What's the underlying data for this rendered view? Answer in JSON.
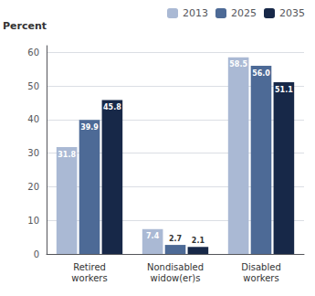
{
  "chart_data": {
    "type": "bar",
    "ylabel": "Percent",
    "categories": [
      "Retired\nworkers",
      "Nondisabled\nwidow(er)s",
      "Disabled\nworkers"
    ],
    "series": [
      {
        "name": "2013",
        "color": "#aab9d4",
        "values": [
          31.8,
          7.4,
          58.5
        ]
      },
      {
        "name": "2025",
        "color": "#4d6a96",
        "values": [
          39.9,
          2.7,
          56.0
        ],
        "value_labels": [
          "39.9",
          "2.7",
          "56.0"
        ]
      },
      {
        "name": "2035",
        "color": "#172848",
        "values": [
          45.8,
          2.1,
          51.1
        ]
      }
    ],
    "ylim": [
      0,
      62
    ],
    "yticks": [
      0,
      10,
      20,
      30,
      40,
      50,
      60
    ],
    "grid": true,
    "legend": "upper right",
    "data_labels": true
  }
}
